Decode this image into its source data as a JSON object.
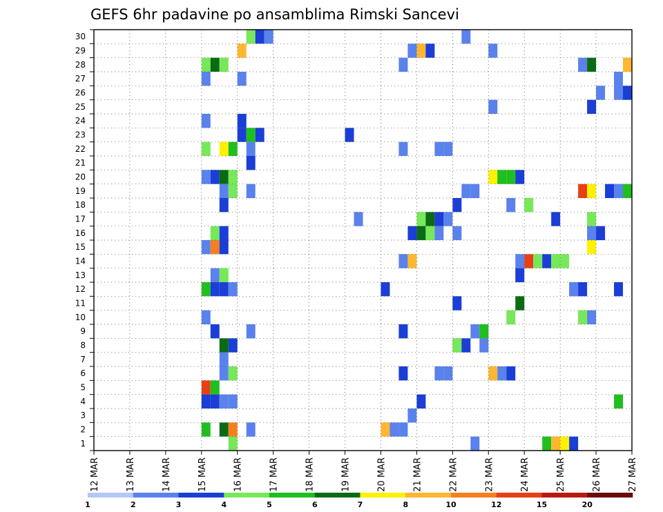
{
  "chart_data": {
    "type": "heatmap",
    "title": "GEFS 6hr padavine po ansamblima Rimski Sancevi",
    "x_tick_labels": [
      "12 MAR",
      "13 MAR",
      "14 MAR",
      "15 MAR",
      "16 MAR",
      "17 MAR",
      "18 MAR",
      "19 MAR",
      "20 MAR",
      "21 MAR",
      "22 MAR",
      "23 MAR",
      "24 MAR",
      "25 MAR",
      "26 MAR",
      "27 MAR"
    ],
    "x_range_days": [
      0,
      15
    ],
    "y_tick_labels": [
      "1",
      "2",
      "3",
      "4",
      "5",
      "6",
      "7",
      "8",
      "9",
      "10",
      "11",
      "12",
      "13",
      "14",
      "15",
      "16",
      "17",
      "18",
      "19",
      "20",
      "21",
      "22",
      "23",
      "24",
      "25",
      "26",
      "27",
      "28",
      "29",
      "30"
    ],
    "grid": "dotted",
    "time_step_hours": 6,
    "legend": {
      "position": "bottom",
      "levels": [
        "1",
        "2",
        "3",
        "4",
        "5",
        "6",
        "7",
        "8",
        "10",
        "12",
        "15",
        "20"
      ],
      "colors": [
        "#b4c7f5",
        "#5a82ec",
        "#1a3ed6",
        "#76e85a",
        "#1fbf1f",
        "#0b6b14",
        "#fff100",
        "#ffb630",
        "#f57f1e",
        "#e83f16",
        "#b81a0e",
        "#6b0b08"
      ]
    },
    "cells": [
      {
        "m": 0,
        "d": "16 MAR 06",
        "c": 3
      },
      {
        "m": 0,
        "d": "16 MAR 12",
        "c": 2
      },
      {
        "m": 0,
        "d": "16 MAR 18",
        "c": 1
      },
      {
        "m": 0,
        "d": "22 MAR 06",
        "c": 1
      },
      {
        "m": 1,
        "d": "16 MAR 00",
        "c": 7
      },
      {
        "m": 1,
        "d": "20 MAR 18",
        "c": 1
      },
      {
        "m": 1,
        "d": "21 MAR 00",
        "c": 7
      },
      {
        "m": 1,
        "d": "21 MAR 06",
        "c": 2
      },
      {
        "m": 1,
        "d": "23 MAR 00",
        "c": 1
      },
      {
        "m": 2,
        "d": "15 MAR 00",
        "c": 3
      },
      {
        "m": 2,
        "d": "15 MAR 06",
        "c": 5
      },
      {
        "m": 2,
        "d": "15 MAR 12",
        "c": 3
      },
      {
        "m": 2,
        "d": "20 MAR 12",
        "c": 1
      },
      {
        "m": 2,
        "d": "25 MAR 12",
        "c": 1
      },
      {
        "m": 2,
        "d": "25 MAR 18",
        "c": 5
      },
      {
        "m": 2,
        "d": "26 MAR 18",
        "c": 7
      },
      {
        "m": 3,
        "d": "15 MAR 00",
        "c": 1
      },
      {
        "m": 3,
        "d": "16 MAR 00",
        "c": 1
      },
      {
        "m": 3,
        "d": "26 MAR 12",
        "c": 1
      },
      {
        "m": 4,
        "d": "26 MAR 00",
        "c": 1
      },
      {
        "m": 4,
        "d": "26 MAR 12",
        "c": 1
      },
      {
        "m": 4,
        "d": "26 MAR 18",
        "c": 2
      },
      {
        "m": 5,
        "d": "23 MAR 00",
        "c": 1
      },
      {
        "m": 5,
        "d": "25 MAR 18",
        "c": 2
      },
      {
        "m": 6,
        "d": "15 MAR 00",
        "c": 1
      },
      {
        "m": 6,
        "d": "16 MAR 00",
        "c": 2
      },
      {
        "m": 7,
        "d": "16 MAR 00",
        "c": 2
      },
      {
        "m": 7,
        "d": "16 MAR 06",
        "c": 4
      },
      {
        "m": 7,
        "d": "16 MAR 12",
        "c": 2
      },
      {
        "m": 7,
        "d": "19 MAR 00",
        "c": 2
      },
      {
        "m": 8,
        "d": "15 MAR 00",
        "c": 3
      },
      {
        "m": 8,
        "d": "15 MAR 12",
        "c": 6
      },
      {
        "m": 8,
        "d": "15 MAR 18",
        "c": 4
      },
      {
        "m": 8,
        "d": "16 MAR 06",
        "c": 1
      },
      {
        "m": 8,
        "d": "20 MAR 12",
        "c": 1
      },
      {
        "m": 8,
        "d": "21 MAR 12",
        "c": 1
      },
      {
        "m": 8,
        "d": "21 MAR 18",
        "c": 1
      },
      {
        "m": 9,
        "d": "16 MAR 06",
        "c": 2
      },
      {
        "m": 10,
        "d": "15 MAR 00",
        "c": 1
      },
      {
        "m": 10,
        "d": "15 MAR 06",
        "c": 2
      },
      {
        "m": 10,
        "d": "15 MAR 12",
        "c": 5
      },
      {
        "m": 10,
        "d": "15 MAR 18",
        "c": 3
      },
      {
        "m": 10,
        "d": "23 MAR 00",
        "c": 6
      },
      {
        "m": 10,
        "d": "23 MAR 06",
        "c": 4
      },
      {
        "m": 10,
        "d": "23 MAR 12",
        "c": 4
      },
      {
        "m": 10,
        "d": "23 MAR 18",
        "c": 2
      },
      {
        "m": 11,
        "d": "15 MAR 12",
        "c": 1
      },
      {
        "m": 11,
        "d": "15 MAR 18",
        "c": 3
      },
      {
        "m": 11,
        "d": "16 MAR 06",
        "c": 1
      },
      {
        "m": 11,
        "d": "22 MAR 06",
        "c": 1
      },
      {
        "m": 11,
        "d": "22 MAR 12",
        "c": 1
      },
      {
        "m": 11,
        "d": "25 MAR 12",
        "c": 9
      },
      {
        "m": 11,
        "d": "25 MAR 18",
        "c": 6
      },
      {
        "m": 11,
        "d": "26 MAR 06",
        "c": 2
      },
      {
        "m": 11,
        "d": "26 MAR 12",
        "c": 1
      },
      {
        "m": 11,
        "d": "26 MAR 18",
        "c": 4
      },
      {
        "m": 12,
        "d": "15 MAR 12",
        "c": 2
      },
      {
        "m": 12,
        "d": "22 MAR 00",
        "c": 2
      },
      {
        "m": 12,
        "d": "23 MAR 12",
        "c": 1
      },
      {
        "m": 12,
        "d": "24 MAR 00",
        "c": 3
      },
      {
        "m": 13,
        "d": "19 MAR 06",
        "c": 1
      },
      {
        "m": 13,
        "d": "21 MAR 00",
        "c": 3
      },
      {
        "m": 13,
        "d": "21 MAR 06",
        "c": 5
      },
      {
        "m": 13,
        "d": "21 MAR 12",
        "c": 2
      },
      {
        "m": 13,
        "d": "21 MAR 18",
        "c": 1
      },
      {
        "m": 13,
        "d": "24 MAR 18",
        "c": 2
      },
      {
        "m": 13,
        "d": "25 MAR 18",
        "c": 3
      },
      {
        "m": 14,
        "d": "15 MAR 06",
        "c": 3
      },
      {
        "m": 14,
        "d": "15 MAR 12",
        "c": 2
      },
      {
        "m": 14,
        "d": "20 MAR 18",
        "c": 2
      },
      {
        "m": 14,
        "d": "21 MAR 00",
        "c": 5
      },
      {
        "m": 14,
        "d": "21 MAR 06",
        "c": 3
      },
      {
        "m": 14,
        "d": "21 MAR 12",
        "c": 1
      },
      {
        "m": 14,
        "d": "22 MAR 00",
        "c": 1
      },
      {
        "m": 14,
        "d": "25 MAR 18",
        "c": 1
      },
      {
        "m": 14,
        "d": "26 MAR 00",
        "c": 2
      },
      {
        "m": 15,
        "d": "15 MAR 00",
        "c": 1
      },
      {
        "m": 15,
        "d": "15 MAR 06",
        "c": 8
      },
      {
        "m": 15,
        "d": "15 MAR 12",
        "c": 2
      },
      {
        "m": 15,
        "d": "25 MAR 18",
        "c": 6
      },
      {
        "m": 16,
        "d": "20 MAR 12",
        "c": 1
      },
      {
        "m": 16,
        "d": "20 MAR 18",
        "c": 7
      },
      {
        "m": 16,
        "d": "23 MAR 18",
        "c": 1
      },
      {
        "m": 16,
        "d": "24 MAR 00",
        "c": 9
      },
      {
        "m": 16,
        "d": "24 MAR 06",
        "c": 3
      },
      {
        "m": 16,
        "d": "24 MAR 12",
        "c": 2
      },
      {
        "m": 16,
        "d": "24 MAR 18",
        "c": 3
      },
      {
        "m": 16,
        "d": "25 MAR 00",
        "c": 3
      },
      {
        "m": 17,
        "d": "15 MAR 06",
        "c": 1
      },
      {
        "m": 17,
        "d": "15 MAR 12",
        "c": 3
      },
      {
        "m": 17,
        "d": "23 MAR 18",
        "c": 2
      },
      {
        "m": 18,
        "d": "15 MAR 00",
        "c": 4
      },
      {
        "m": 18,
        "d": "15 MAR 06",
        "c": 2
      },
      {
        "m": 18,
        "d": "15 MAR 12",
        "c": 2
      },
      {
        "m": 18,
        "d": "15 MAR 18",
        "c": 1
      },
      {
        "m": 18,
        "d": "20 MAR 00",
        "c": 2
      },
      {
        "m": 18,
        "d": "25 MAR 06",
        "c": 1
      },
      {
        "m": 18,
        "d": "25 MAR 12",
        "c": 2
      },
      {
        "m": 18,
        "d": "26 MAR 12",
        "c": 2
      },
      {
        "m": 19,
        "d": "22 MAR 00",
        "c": 2
      },
      {
        "m": 19,
        "d": "23 MAR 18",
        "c": 5
      },
      {
        "m": 20,
        "d": "15 MAR 00",
        "c": 1
      },
      {
        "m": 20,
        "d": "23 MAR 12",
        "c": 3
      },
      {
        "m": 20,
        "d": "25 MAR 12",
        "c": 3
      },
      {
        "m": 20,
        "d": "25 MAR 18",
        "c": 1
      },
      {
        "m": 21,
        "d": "15 MAR 06",
        "c": 2
      },
      {
        "m": 21,
        "d": "16 MAR 06",
        "c": 1
      },
      {
        "m": 21,
        "d": "20 MAR 12",
        "c": 2
      },
      {
        "m": 21,
        "d": "22 MAR 12",
        "c": 1
      },
      {
        "m": 21,
        "d": "22 MAR 18",
        "c": 4
      },
      {
        "m": 22,
        "d": "15 MAR 12",
        "c": 5
      },
      {
        "m": 22,
        "d": "15 MAR 18",
        "c": 2
      },
      {
        "m": 22,
        "d": "22 MAR 00",
        "c": 3
      },
      {
        "m": 22,
        "d": "22 MAR 06",
        "c": 2
      },
      {
        "m": 22,
        "d": "22 MAR 18",
        "c": 1
      },
      {
        "m": 23,
        "d": "15 MAR 12",
        "c": 1
      },
      {
        "m": 24,
        "d": "15 MAR 12",
        "c": 1
      },
      {
        "m": 24,
        "d": "15 MAR 18",
        "c": 3
      },
      {
        "m": 24,
        "d": "20 MAR 12",
        "c": 2
      },
      {
        "m": 24,
        "d": "21 MAR 12",
        "c": 1
      },
      {
        "m": 24,
        "d": "21 MAR 18",
        "c": 1
      },
      {
        "m": 24,
        "d": "23 MAR 00",
        "c": 7
      },
      {
        "m": 24,
        "d": "23 MAR 06",
        "c": 1
      },
      {
        "m": 24,
        "d": "23 MAR 12",
        "c": 2
      },
      {
        "m": 25,
        "d": "15 MAR 00",
        "c": 9
      },
      {
        "m": 25,
        "d": "15 MAR 06",
        "c": 4
      },
      {
        "m": 26,
        "d": "15 MAR 00",
        "c": 2
      },
      {
        "m": 26,
        "d": "15 MAR 06",
        "c": 2
      },
      {
        "m": 26,
        "d": "15 MAR 12",
        "c": 1
      },
      {
        "m": 26,
        "d": "15 MAR 18",
        "c": 1
      },
      {
        "m": 26,
        "d": "21 MAR 00",
        "c": 2
      },
      {
        "m": 26,
        "d": "26 MAR 12",
        "c": 4
      },
      {
        "m": 27,
        "d": "20 MAR 18",
        "c": 1
      },
      {
        "m": 28,
        "d": "15 MAR 00",
        "c": 4
      },
      {
        "m": 28,
        "d": "15 MAR 12",
        "c": 5
      },
      {
        "m": 28,
        "d": "15 MAR 18",
        "c": 8
      },
      {
        "m": 28,
        "d": "16 MAR 06",
        "c": 1
      },
      {
        "m": 28,
        "d": "20 MAR 00",
        "c": 7
      },
      {
        "m": 28,
        "d": "20 MAR 06",
        "c": 1
      },
      {
        "m": 28,
        "d": "20 MAR 12",
        "c": 1
      },
      {
        "m": 29,
        "d": "15 MAR 18",
        "c": 3
      },
      {
        "m": 29,
        "d": "22 MAR 12",
        "c": 1
      },
      {
        "m": 29,
        "d": "24 MAR 12",
        "c": 4
      },
      {
        "m": 29,
        "d": "24 MAR 18",
        "c": 7
      },
      {
        "m": 29,
        "d": "25 MAR 00",
        "c": 6
      },
      {
        "m": 29,
        "d": "25 MAR 06",
        "c": 2
      }
    ]
  }
}
